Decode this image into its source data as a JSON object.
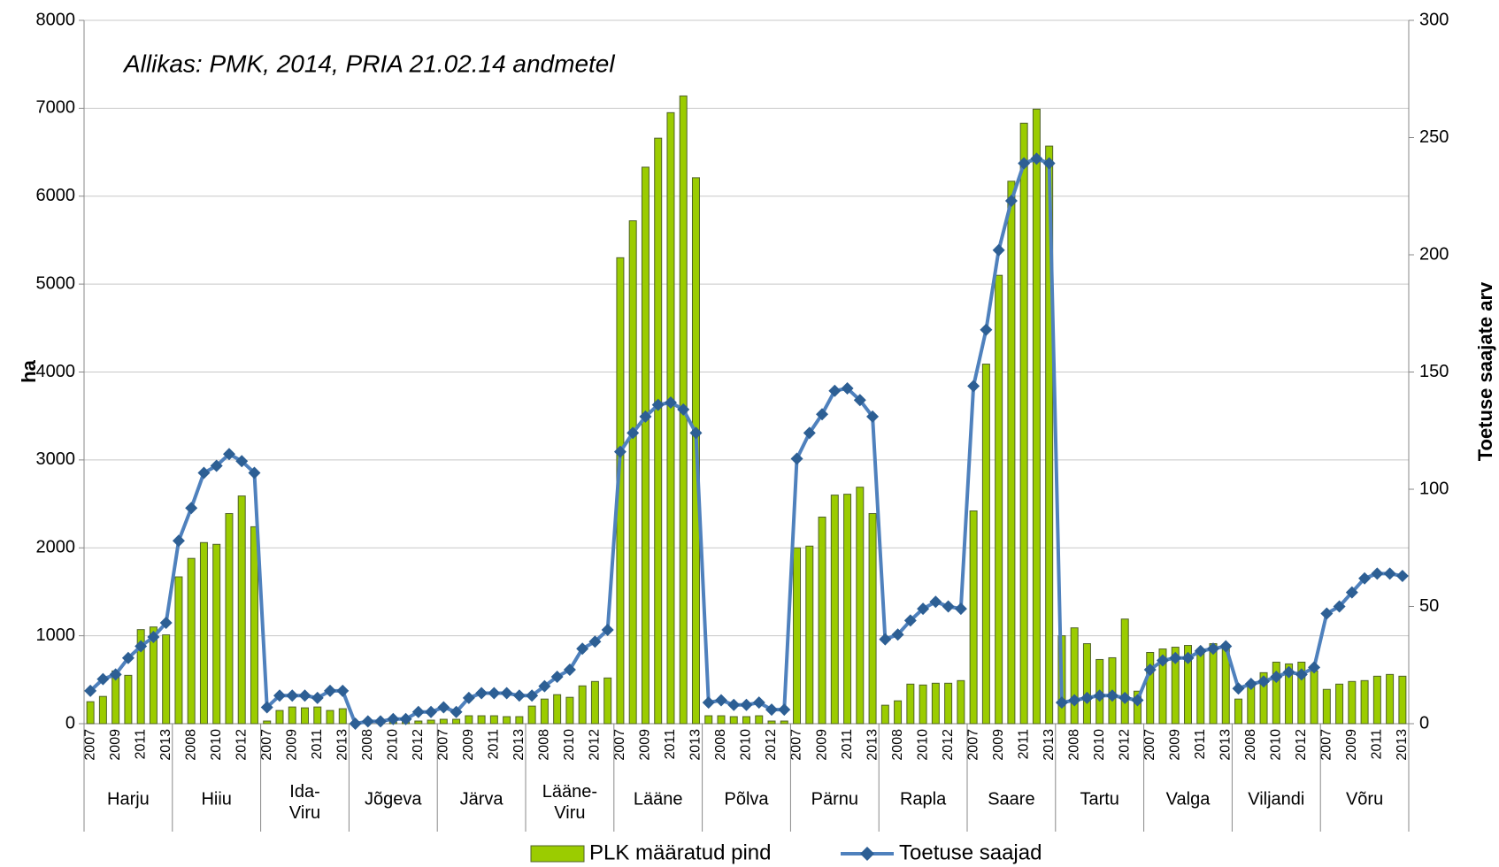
{
  "chart_data": {
    "type": "bar_line",
    "annotation": "Allikas: PMK, 2014, PRIA  21.02.14 andmetel",
    "ylabel": "ha",
    "y2label": "Toetuse saajate arv",
    "groups": [
      "Harju",
      "Hiiu",
      "Ida-Viru",
      "Jõgeva",
      "Järva",
      "Lääne-Viru",
      "Lääne",
      "Põlva",
      "Pärnu",
      "Rapla",
      "Saare",
      "Tartu",
      "Valga",
      "Viljandi",
      "Võru"
    ],
    "categories": [
      "2007",
      null,
      "2009",
      null,
      "2011",
      null,
      "2013",
      null,
      "2008",
      null,
      "2010",
      null,
      "2012",
      null,
      "2007",
      null,
      "2009",
      null,
      "2011",
      null,
      "2013",
      null,
      "2008",
      null,
      "2010",
      null,
      "2012",
      null,
      "2007",
      null,
      "2009",
      null,
      "2011",
      null,
      "2013",
      null,
      "2008",
      null,
      "2010",
      null,
      "2012",
      null,
      "2007",
      null,
      "2009",
      null,
      "2011",
      null,
      "2013",
      null,
      "2008",
      null,
      "2010",
      null,
      "2012",
      null,
      "2007",
      null,
      "2009",
      null,
      "2011",
      null,
      "2013",
      null,
      "2008",
      null,
      "2010",
      null,
      "2012",
      null,
      "2007",
      null,
      "2009",
      null,
      "2011",
      null,
      "2013",
      null,
      "2008",
      null,
      "2010",
      null,
      "2012",
      null,
      "2007",
      null,
      "2009",
      null,
      "2011",
      null,
      "2013",
      null,
      "2008",
      null,
      "2010",
      null,
      "2012",
      null,
      "2007",
      null,
      "2009",
      null,
      "2011",
      null,
      "2013"
    ],
    "series": [
      {
        "name": "PLK määratud pind",
        "type": "bar",
        "color": "#9bcc00",
        "values": [
          250,
          310,
          600,
          550,
          1070,
          1100,
          1010,
          1670,
          1880,
          2060,
          2040,
          2390,
          2590,
          2240,
          30,
          150,
          190,
          180,
          190,
          150,
          170,
          5,
          10,
          10,
          20,
          30,
          30,
          40,
          50,
          50,
          90,
          90,
          90,
          80,
          80,
          200,
          280,
          330,
          300,
          430,
          480,
          520,
          5300,
          5720,
          6330,
          6660,
          6950,
          7140,
          6210,
          90,
          90,
          80,
          80,
          90,
          30,
          30,
          2000,
          2020,
          2350,
          2600,
          2610,
          2690,
          2390,
          210,
          260,
          450,
          440,
          460,
          460,
          490,
          2420,
          4090,
          5100,
          6170,
          6830,
          6990,
          6570,
          1000,
          1090,
          910,
          730,
          750,
          1190,
          370,
          810,
          850,
          870,
          890,
          850,
          910,
          880,
          280,
          470,
          580,
          700,
          680,
          700,
          600,
          390,
          450,
          480,
          490,
          540,
          560,
          540
        ]
      },
      {
        "name": "Toetuse saajad",
        "type": "line",
        "axis": "y2",
        "color": "#4f81bd",
        "marker_color": "#2d5f94",
        "values": [
          14,
          19,
          21,
          28,
          33,
          37,
          43,
          78,
          92,
          107,
          110,
          115,
          112,
          107,
          7,
          12,
          12,
          12,
          11,
          14,
          14,
          0,
          1,
          1,
          2,
          2,
          5,
          5,
          7,
          5,
          11,
          13,
          13,
          13,
          12,
          12,
          16,
          20,
          23,
          32,
          35,
          40,
          116,
          124,
          131,
          136,
          137,
          134,
          124,
          9,
          10,
          8,
          8,
          9,
          6,
          6,
          113,
          124,
          132,
          142,
          143,
          138,
          131,
          36,
          38,
          44,
          49,
          52,
          50,
          49,
          144,
          168,
          202,
          223,
          239,
          241,
          239,
          9,
          10,
          11,
          12,
          12,
          11,
          10,
          23,
          27,
          28,
          28,
          31,
          32,
          33,
          15,
          17,
          18,
          20,
          22,
          21,
          24,
          47,
          50,
          56,
          62,
          64,
          64,
          63
        ]
      }
    ],
    "ylim": [
      0,
      8000
    ],
    "yticks": [
      0,
      1000,
      2000,
      3000,
      4000,
      5000,
      6000,
      7000,
      8000
    ],
    "y2lim": [
      0,
      300
    ],
    "y2ticks": [
      0,
      50,
      100,
      150,
      200,
      250,
      300
    ],
    "grid": true
  }
}
